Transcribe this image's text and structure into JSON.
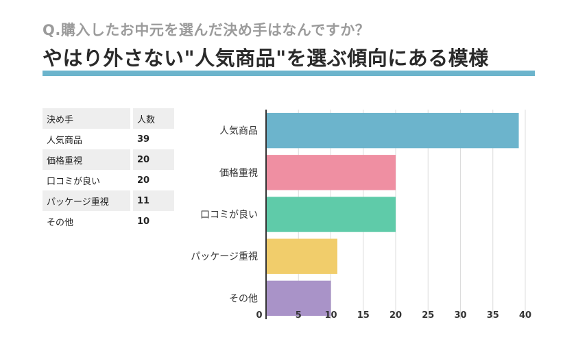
{
  "header": {
    "question": "Q.購入したお中元を選んだ決め手はなんですか？",
    "headline": "やはり外さない\"人気商品\"を選ぶ傾向にある模様",
    "accent_color": "#6cb4cc"
  },
  "table": {
    "columns": [
      "決め手",
      "人数"
    ],
    "rows": [
      [
        "人気商品",
        "39"
      ],
      [
        "価格重視",
        "20"
      ],
      [
        "口コミが良い",
        "20"
      ],
      [
        "パッケージ重視",
        "11"
      ],
      [
        "その他",
        "10"
      ]
    ]
  },
  "chart_data": {
    "type": "bar",
    "orientation": "horizontal",
    "categories": [
      "人気商品",
      "価格重視",
      "口コミが良い",
      "パッケージ重視",
      "その他"
    ],
    "values": [
      39,
      20,
      20,
      11,
      10
    ],
    "colors": [
      "#6cb4cc",
      "#ef8fa2",
      "#5fcba9",
      "#f1cd6b",
      "#a993c8"
    ],
    "xlim": [
      0,
      40
    ],
    "xticks": [
      0,
      5,
      10,
      15,
      20,
      25,
      30,
      35,
      40
    ],
    "grid": true,
    "title": "",
    "xlabel": "",
    "ylabel": ""
  }
}
